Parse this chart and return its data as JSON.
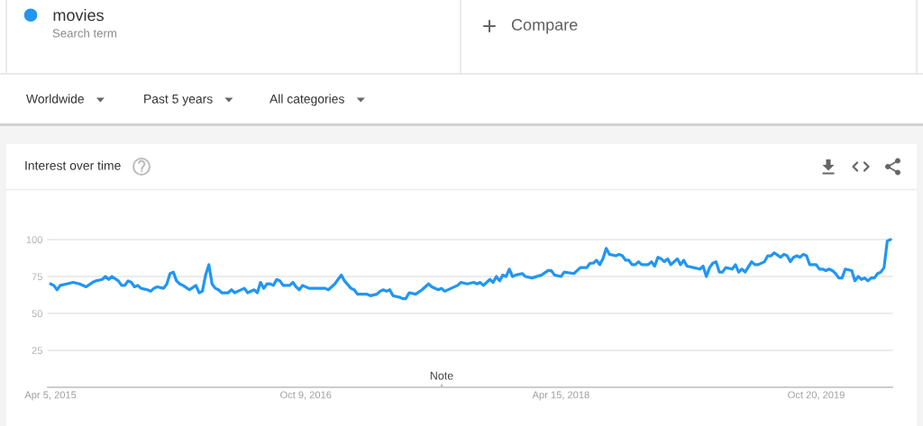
{
  "chart_data": {
    "type": "line",
    "title": "Interest over time",
    "annotations": [
      "Search term",
      "Compare",
      "Worldwide",
      "Past 5 years",
      "All categories",
      "Note"
    ],
    "x": [
      "2015-04-05",
      "2015-04-12",
      "2015-04-19",
      "2015-04-26",
      "2015-05-10",
      "2015-05-24",
      "2015-06-07",
      "2015-06-21",
      "2015-07-05",
      "2015-07-12",
      "2015-07-26",
      "2015-08-02",
      "2015-08-09",
      "2015-08-16",
      "2015-08-30",
      "2015-09-06",
      "2015-09-13",
      "2015-09-20",
      "2015-09-27",
      "2015-10-04",
      "2015-10-11",
      "2015-10-18",
      "2015-11-01",
      "2015-11-08",
      "2015-11-15",
      "2015-11-22",
      "2015-12-06",
      "2015-12-13",
      "2015-12-20",
      "2015-12-27",
      "2016-01-03",
      "2016-01-10",
      "2016-01-17",
      "2016-01-31",
      "2016-02-14",
      "2016-02-21",
      "2016-02-28",
      "2016-03-06",
      "2016-03-13",
      "2016-03-20",
      "2016-03-27",
      "2016-04-03",
      "2016-04-10",
      "2016-04-24",
      "2016-05-01",
      "2016-05-08",
      "2016-05-15",
      "2016-05-29",
      "2016-06-05",
      "2016-06-19",
      "2016-06-26",
      "2016-07-03",
      "2016-07-10",
      "2016-07-17",
      "2016-07-24",
      "2016-07-31",
      "2016-08-07",
      "2016-08-14",
      "2016-08-21",
      "2016-09-04",
      "2016-09-11",
      "2016-09-18",
      "2016-09-25",
      "2016-10-02",
      "2016-10-16",
      "2016-11-20",
      "2016-11-27",
      "2016-12-11",
      "2016-12-18",
      "2016-12-25",
      "2017-01-01",
      "2017-01-15",
      "2017-01-22",
      "2017-01-29",
      "2017-02-19",
      "2017-02-26",
      "2017-03-12",
      "2017-03-19",
      "2017-03-26",
      "2017-04-02",
      "2017-04-09",
      "2017-04-16",
      "2017-04-30",
      "2017-05-07",
      "2017-05-14",
      "2017-05-21",
      "2017-06-04",
      "2017-06-18",
      "2017-07-02",
      "2017-07-09",
      "2017-07-23",
      "2017-07-30",
      "2017-08-06",
      "2017-08-20",
      "2017-09-03",
      "2017-09-10",
      "2017-09-24",
      "2017-10-08",
      "2017-10-15",
      "2017-10-22",
      "2017-10-29",
      "2017-11-12",
      "2017-11-19",
      "2017-11-26",
      "2017-12-03",
      "2017-12-10",
      "2017-12-17",
      "2017-12-24",
      "2017-12-31",
      "2018-01-07",
      "2018-01-21",
      "2018-01-28",
      "2018-02-11",
      "2018-03-04",
      "2018-03-18",
      "2018-03-25",
      "2018-04-01",
      "2018-04-15",
      "2018-04-22",
      "2018-05-13",
      "2018-05-27",
      "2018-06-10",
      "2018-06-17",
      "2018-06-24",
      "2018-07-01",
      "2018-07-08",
      "2018-07-15",
      "2018-07-22",
      "2018-07-29",
      "2018-08-12",
      "2018-08-19",
      "2018-08-26",
      "2018-09-02",
      "2018-09-09",
      "2018-09-16",
      "2018-09-23",
      "2018-09-30",
      "2018-10-07",
      "2018-10-21",
      "2018-10-28",
      "2018-11-04",
      "2018-11-11",
      "2018-11-18",
      "2018-11-25",
      "2018-12-02",
      "2018-12-09",
      "2018-12-23",
      "2018-12-30",
      "2019-01-06",
      "2019-01-13",
      "2019-01-27",
      "2019-02-10",
      "2019-02-17",
      "2019-02-24",
      "2019-03-03",
      "2019-03-10",
      "2019-03-17",
      "2019-03-24",
      "2019-03-31",
      "2019-04-07",
      "2019-04-21",
      "2019-04-28",
      "2019-05-05",
      "2019-05-12",
      "2019-05-19",
      "2019-06-02",
      "2019-06-09",
      "2019-06-16",
      "2019-06-30",
      "2019-07-07",
      "2019-07-14",
      "2019-07-21",
      "2019-08-04",
      "2019-08-11",
      "2019-08-18",
      "2019-08-25",
      "2019-09-01",
      "2019-09-08",
      "2019-09-15",
      "2019-09-22",
      "2019-09-29",
      "2019-10-06",
      "2019-10-20",
      "2019-10-27",
      "2019-11-03",
      "2019-11-10",
      "2019-11-17",
      "2019-11-24",
      "2019-12-01",
      "2019-12-08",
      "2019-12-15",
      "2019-12-22",
      "2020-01-05",
      "2020-01-12",
      "2020-01-19",
      "2020-01-26",
      "2020-02-02",
      "2020-02-09",
      "2020-02-16",
      "2020-02-23",
      "2020-03-01",
      "2020-03-08",
      "2020-03-15",
      "2020-03-22",
      "2020-03-29"
    ],
    "series": [
      {
        "name": "movies",
        "color": "#2196f3",
        "values": [
          70,
          69,
          66,
          69,
          70,
          71,
          70,
          68,
          71,
          72,
          73,
          75,
          73,
          75,
          72,
          69,
          69,
          72,
          71,
          68,
          69,
          67,
          66,
          65,
          67,
          68,
          67,
          70,
          77,
          78,
          72,
          70,
          69,
          66,
          69,
          64,
          65,
          76,
          83,
          70,
          67,
          66,
          64,
          64,
          66,
          64,
          65,
          67,
          64,
          66,
          64,
          71,
          67,
          70,
          70,
          69,
          73,
          72,
          69,
          69,
          71,
          68,
          66,
          69,
          67,
          67,
          66,
          70,
          73,
          76,
          72,
          67,
          66,
          63,
          63,
          62,
          63,
          65,
          66,
          65,
          66,
          62,
          61,
          60,
          60,
          64,
          63,
          66,
          70,
          68,
          66,
          67,
          65,
          67,
          69,
          71,
          70,
          71,
          70,
          71,
          69,
          73,
          71,
          75,
          72,
          76,
          75,
          80,
          75,
          76,
          77,
          75,
          74,
          76,
          79,
          79,
          76,
          75,
          78,
          77,
          81,
          81,
          84,
          84,
          86,
          83,
          87,
          94,
          90,
          89,
          90,
          89,
          86,
          86,
          83,
          83,
          85,
          83,
          83,
          85,
          82,
          88,
          87,
          85,
          87,
          83,
          87,
          83,
          86,
          82,
          81,
          80,
          82,
          75,
          81,
          84,
          85,
          78,
          78,
          81,
          80,
          83,
          78,
          80,
          78,
          85,
          83,
          83,
          85,
          89,
          89,
          91,
          88,
          90,
          89,
          85,
          88,
          89,
          88,
          90,
          89,
          83,
          83,
          80,
          80,
          79,
          80,
          79,
          77,
          74,
          74,
          80,
          79,
          72,
          75,
          73,
          74,
          72,
          74,
          74,
          77,
          78,
          81,
          99,
          100
        ]
      }
    ],
    "xlim": [
      "2015-03-30",
      "2020-04-02"
    ],
    "xticks": [
      {
        "value": "2015-04-05",
        "label": "Apr 5, 2015"
      },
      {
        "value": "2016-10-09",
        "label": "Oct 9, 2016"
      },
      {
        "value": "2018-04-15",
        "label": "Apr 15, 2018"
      },
      {
        "value": "2019-10-20",
        "label": "Oct 20, 2019"
      }
    ],
    "ylim": [
      0,
      100
    ],
    "yticks": [
      25,
      50,
      75,
      100
    ],
    "grid": "y",
    "legend": "top left",
    "line_style": "solid"
  }
}
